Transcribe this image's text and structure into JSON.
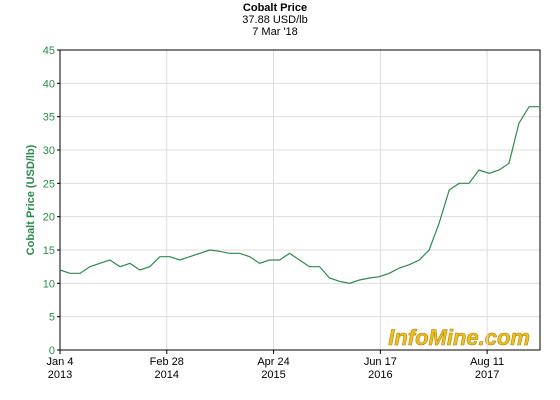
{
  "chart_data": {
    "type": "line",
    "title": "Cobalt Price",
    "subtitle": [
      "37.88 USD/lb",
      "7 Mar '18"
    ],
    "y_label": "Cobalt Price (USD/lb)",
    "watermark": "InfoMine.com",
    "x": [
      0,
      39,
      79,
      118,
      157,
      196,
      236,
      275,
      314,
      353,
      393,
      432,
      471,
      510,
      550,
      589,
      628,
      667,
      707,
      746,
      785,
      824,
      864,
      903,
      942,
      981,
      1021,
      1060,
      1099,
      1138,
      1178,
      1217,
      1256,
      1295,
      1335,
      1374,
      1413,
      1452,
      1491,
      1531,
      1570,
      1609,
      1648,
      1688,
      1727,
      1766,
      1805,
      1845,
      1884
    ],
    "series": [
      {
        "color": "#2a8c4a",
        "values": [
          12,
          11.5,
          11.5,
          12.5,
          13,
          13.5,
          12.5,
          13,
          12,
          12.5,
          14,
          14,
          13.5,
          14,
          14.5,
          15,
          14.8,
          14.5,
          14.5,
          14,
          13,
          13.5,
          13.5,
          14.5,
          13.5,
          12.5,
          12.5,
          10.8,
          10.3,
          10,
          10.5,
          10.8,
          11,
          11.5,
          12.3,
          12.8,
          13.5,
          15,
          19,
          24,
          25,
          25,
          27,
          26.5,
          27,
          28,
          34,
          36.5,
          36.5
        ]
      }
    ],
    "xlim": [
      0,
      1888
    ],
    "xticks": [
      {
        "value": 0,
        "label": [
          "Jan 4",
          "2013"
        ]
      },
      {
        "value": 420,
        "label": [
          "Feb 28",
          "2014"
        ]
      },
      {
        "value": 840,
        "label": [
          "Apr 24",
          "2015"
        ]
      },
      {
        "value": 1260,
        "label": [
          "Jun 17",
          "2016"
        ]
      },
      {
        "value": 1680,
        "label": [
          "Aug 11",
          "2017"
        ]
      }
    ],
    "ylim": [
      0,
      45
    ],
    "yticks": [
      0,
      5,
      10,
      15,
      20,
      25,
      30,
      35,
      40,
      45
    ],
    "grid": true
  }
}
